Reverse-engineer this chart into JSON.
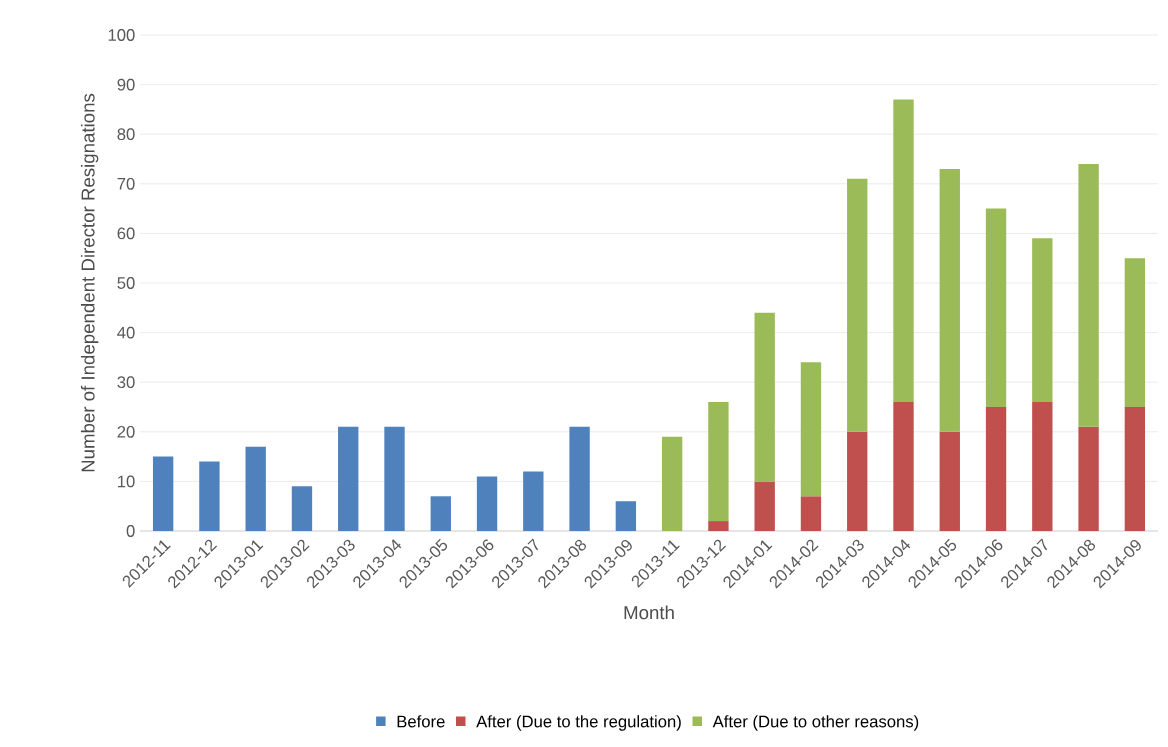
{
  "chart_data": {
    "type": "bar",
    "stacked": true,
    "xlabel": "Month",
    "ylabel": "Number of Independent Director Resignations",
    "categories": [
      "2012-11",
      "2012-12",
      "2013-01",
      "2013-02",
      "2013-03",
      "2013-04",
      "2013-05",
      "2013-06",
      "2013-07",
      "2013-08",
      "2013-09",
      "2013-11",
      "2013-12",
      "2014-01",
      "2014-02",
      "2014-03",
      "2014-04",
      "2014-05",
      "2014-06",
      "2014-07",
      "2014-08",
      "2014-09"
    ],
    "series": [
      {
        "name": "Before",
        "color": "#4f81bd",
        "values": [
          15,
          14,
          17,
          9,
          21,
          21,
          7,
          11,
          12,
          21,
          6,
          null,
          null,
          null,
          null,
          null,
          null,
          null,
          null,
          null,
          null,
          null
        ]
      },
      {
        "name": "After (Due to the regulation)",
        "color": "#c0504d",
        "values": [
          null,
          null,
          null,
          null,
          null,
          null,
          null,
          null,
          null,
          null,
          null,
          null,
          2,
          10,
          7,
          20,
          26,
          20,
          25,
          26,
          21,
          25
        ]
      },
      {
        "name": "After (Due to other reasons)",
        "color": "#9bbb59",
        "values": [
          null,
          null,
          null,
          null,
          null,
          null,
          null,
          null,
          null,
          null,
          null,
          19,
          24,
          34,
          27,
          51,
          61,
          53,
          40,
          33,
          53,
          30
        ]
      }
    ],
    "ylim": [
      0,
      100
    ],
    "yticks": [
      0,
      10,
      20,
      30,
      40,
      50,
      60,
      70,
      80,
      90,
      100
    ],
    "grid": "y",
    "legend": "bottom"
  }
}
